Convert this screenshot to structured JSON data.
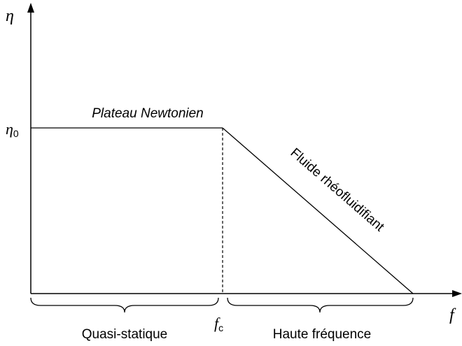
{
  "axes": {
    "y_label": "η",
    "x_label": "f"
  },
  "marks": {
    "y": {
      "symbol": "η",
      "subscript": "0"
    },
    "x": {
      "symbol": "f",
      "subscript": "c"
    }
  },
  "curve_labels": {
    "plateau": "Plateau Newtonien",
    "slope": "Fluide rhéofluidifiant"
  },
  "regions": {
    "left": "Quasi-statique",
    "right": "Haute fréquence"
  }
}
